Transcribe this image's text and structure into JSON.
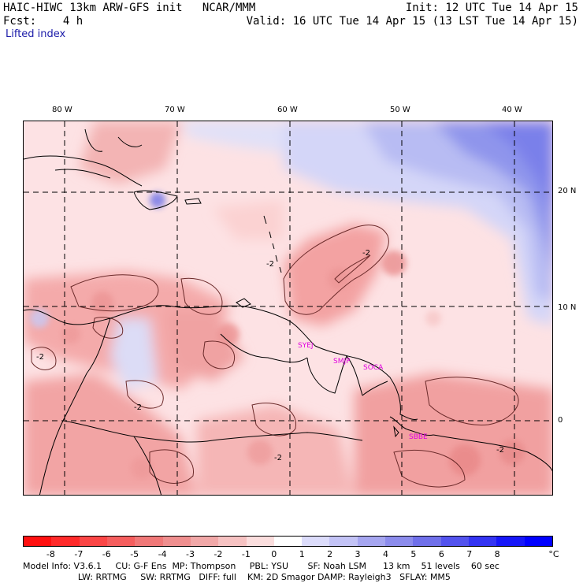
{
  "header": {
    "line1_left": "HAIC-HIWC 13km ARW-GFS init   NCAR/MMM",
    "line1_right": "Init: 12 UTC Tue 14 Apr 15",
    "line2_left": "Fcst:    4 h",
    "line2_right": "Valid: 16 UTC Tue 14 Apr 15 (13 LST Tue 14 Apr 15)",
    "field_name": "Lifted index"
  },
  "axes": {
    "lon_labels": [
      "80 W",
      "70 W",
      "60 W",
      "50 W",
      "40 W"
    ],
    "lat_labels": [
      "20 N",
      "10 N",
      "0"
    ]
  },
  "stations": [
    "SYEJ",
    "SMJP",
    "SOCA",
    "SBBE"
  ],
  "contour_labels": [
    "-2",
    "-2",
    "-2",
    "-2",
    "-2",
    "-2"
  ],
  "colorbar": {
    "ticks": [
      "-8",
      "-7",
      "-6",
      "-5",
      "-4",
      "-3",
      "-2",
      "-1",
      "0",
      "1",
      "2",
      "3",
      "4",
      "5",
      "6",
      "7",
      "8"
    ],
    "unit": "°C",
    "colors": [
      "#ff1010",
      "#ff2a2a",
      "#fb4646",
      "#f55e5e",
      "#f07878",
      "#ef8f8f",
      "#f1a8a8",
      "#f6c2c2",
      "#fbdede",
      "#ffffff",
      "#dcdcfb",
      "#c3c3f6",
      "#a6a6f0",
      "#8c8cec",
      "#7070ea",
      "#5353ee",
      "#3434f2",
      "#1616f8",
      "#0000ff"
    ]
  },
  "footer": {
    "line1": "Model Info: V3.6.1     CU: G-F Ens  MP: Thompson     PBL: YSU       SF: Noah LSM      13 km    51 levels    60 sec",
    "line2": "                    LW: RRTMG     SW: RRTMG   DIFF: full    KM: 2D Smagor DAMP: Rayleigh3   SFLAY: MM5"
  }
}
